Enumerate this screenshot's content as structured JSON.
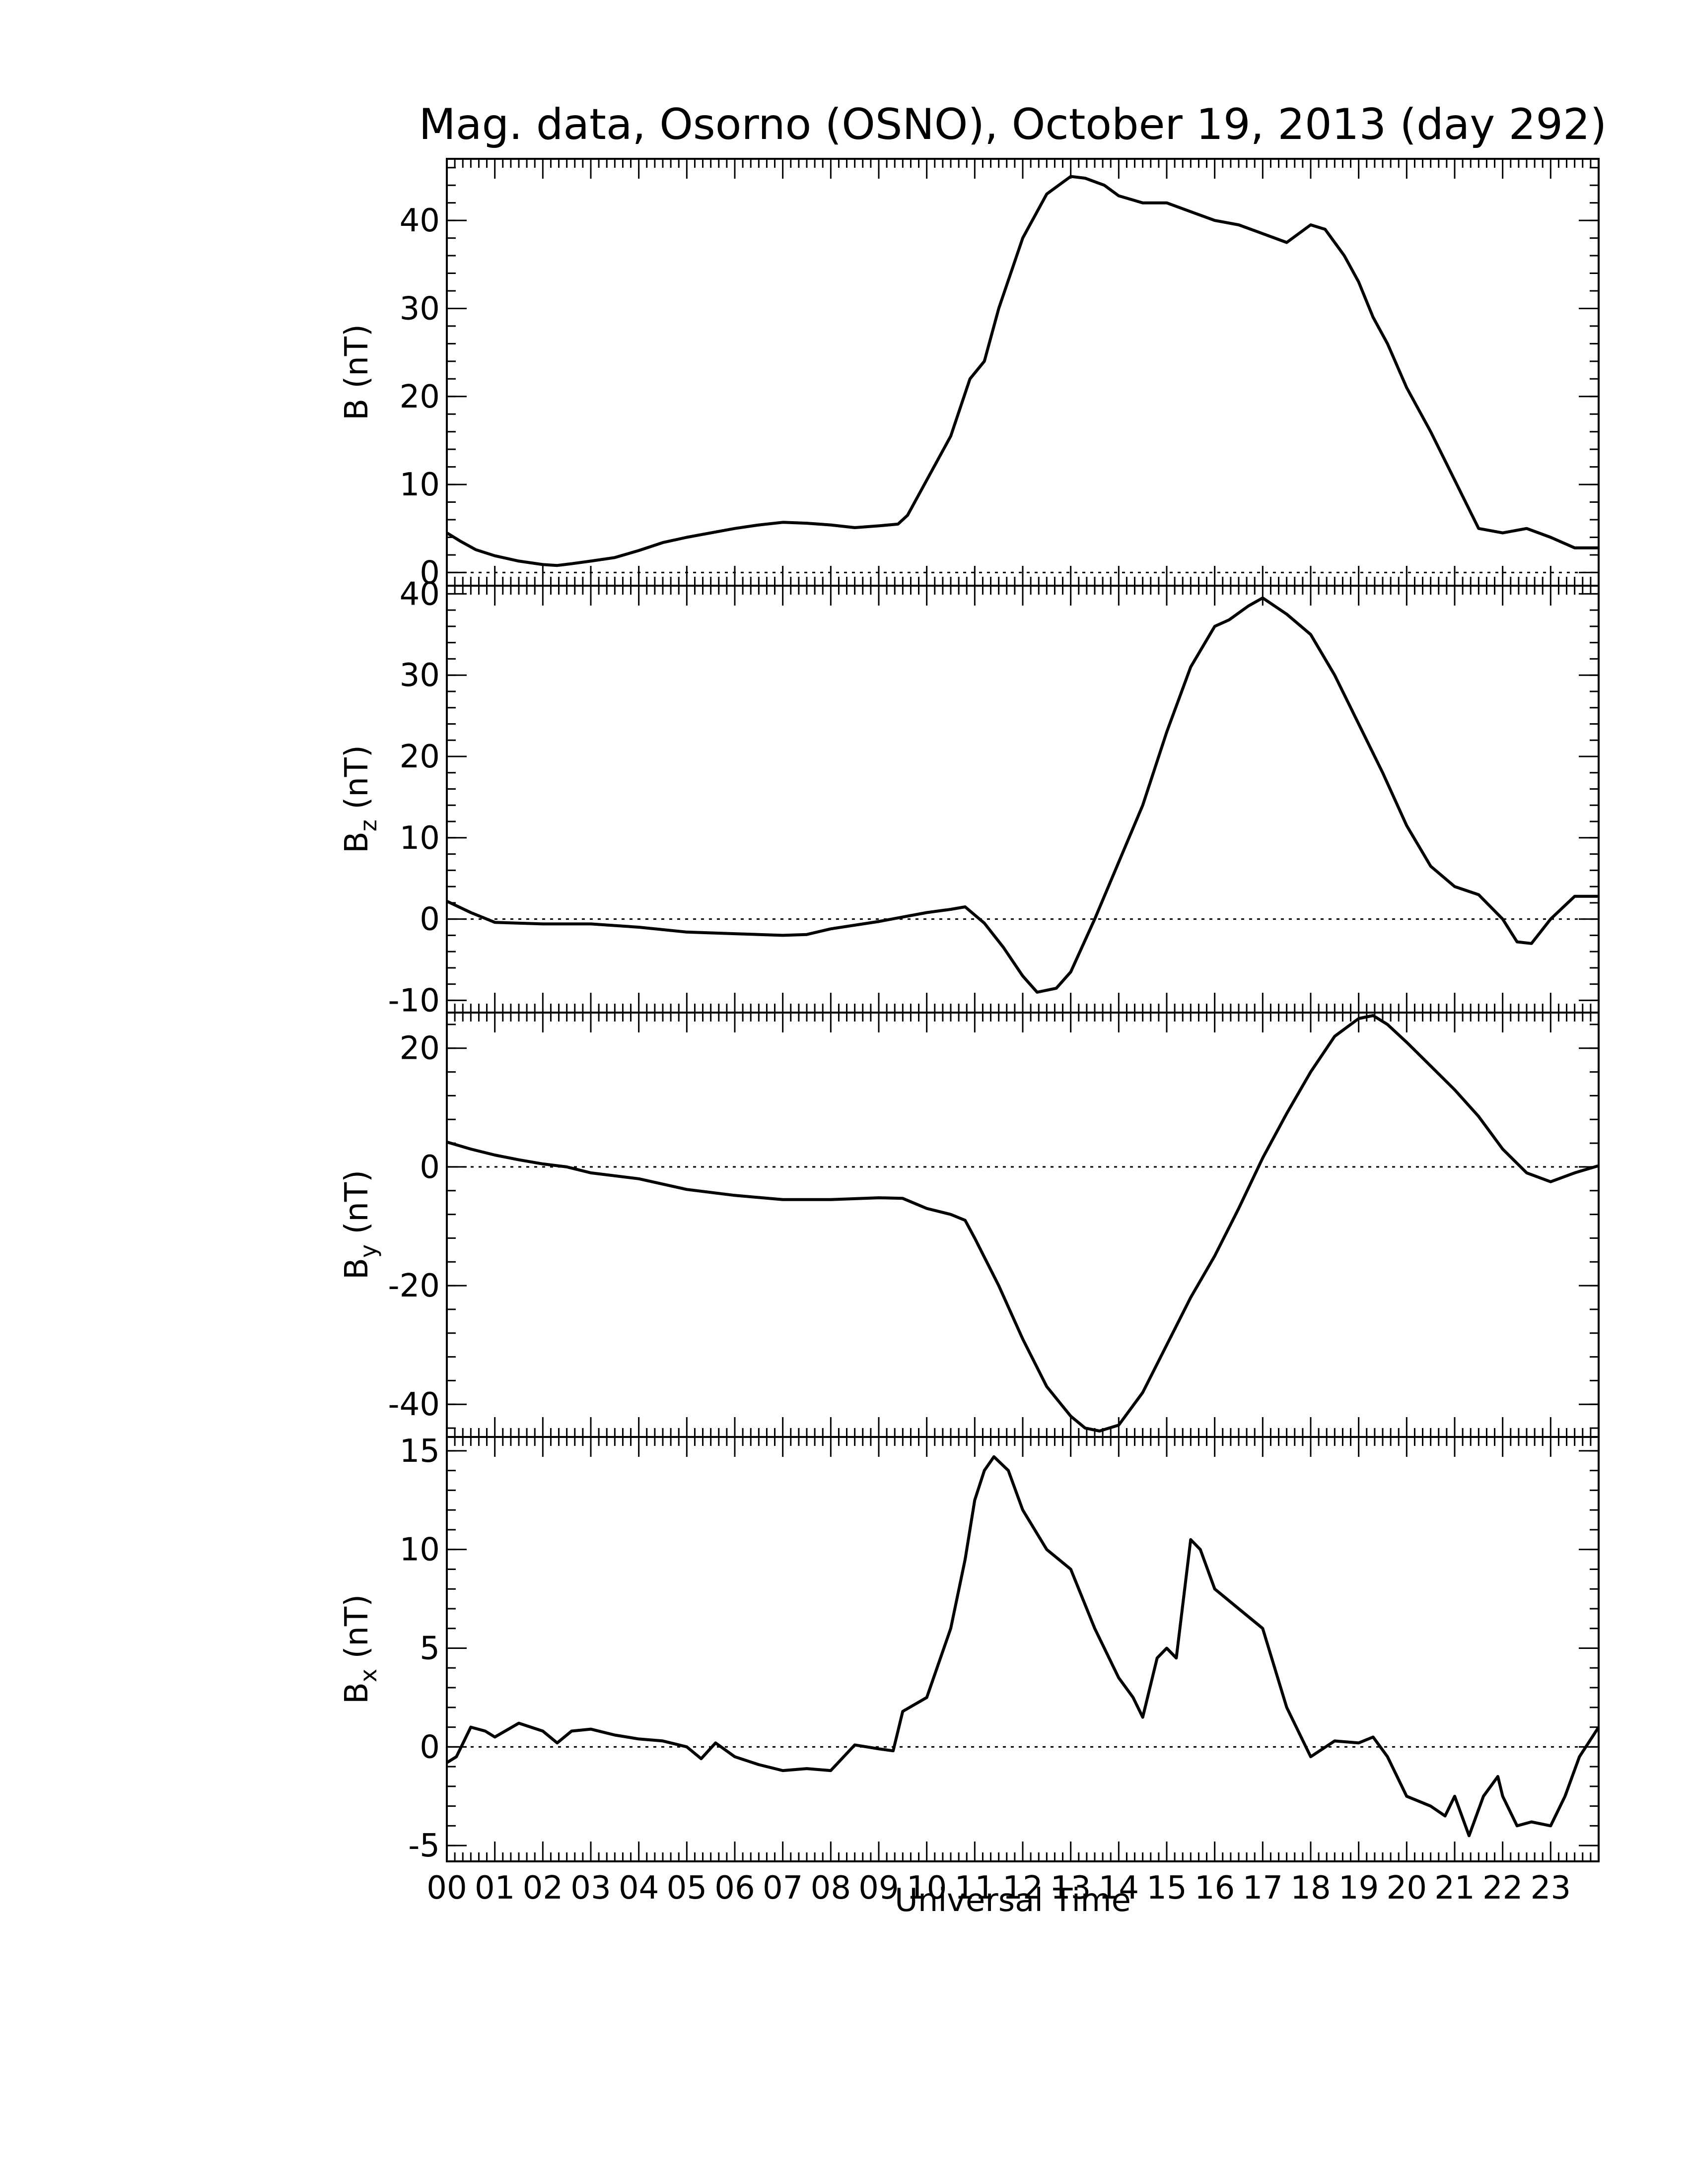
{
  "chart_data": {
    "type": "line",
    "title": "Mag. data, Osorno (OSNO), October 19, 2013 (day 292)",
    "xlabel": "Universal Time",
    "xlim": [
      0,
      24
    ],
    "xtick_labels": [
      "00",
      "01",
      "02",
      "03",
      "04",
      "05",
      "06",
      "07",
      "08",
      "09",
      "10",
      "11",
      "12",
      "13",
      "14",
      "15",
      "16",
      "17",
      "18",
      "19",
      "20",
      "21",
      "22",
      "23"
    ],
    "panels": [
      {
        "ylabel_main": "B",
        "ylabel_sub": "",
        "ylabel_unit": " (nT)",
        "ylim": [
          -1.5,
          47
        ],
        "yticks": [
          0,
          10,
          20,
          30,
          40
        ],
        "zero_line": true,
        "x": [
          0,
          0.3,
          0.6,
          1,
          1.5,
          2,
          2.3,
          2.6,
          3,
          3.5,
          4,
          4.5,
          5,
          5.5,
          6,
          6.5,
          7,
          7.5,
          8,
          8.5,
          9,
          9.4,
          9.6,
          10,
          10.5,
          10.9,
          11.2,
          11.5,
          12,
          12.5,
          13,
          13.3,
          13.7,
          14,
          14.5,
          15,
          15.5,
          16,
          16.5,
          17,
          17.5,
          18,
          18.3,
          18.7,
          19,
          19.3,
          19.6,
          20,
          20.5,
          21,
          21.5,
          22,
          22.5,
          23,
          23.5,
          24
        ],
        "y": [
          4.5,
          3.5,
          2.6,
          1.9,
          1.3,
          0.9,
          0.8,
          1.0,
          1.3,
          1.7,
          2.5,
          3.4,
          4.0,
          4.5,
          5.0,
          5.4,
          5.7,
          5.6,
          5.4,
          5.1,
          5.3,
          5.5,
          6.5,
          10.5,
          15.5,
          22,
          24,
          30,
          38,
          43,
          45,
          44.8,
          44,
          42.8,
          42,
          42,
          41,
          40,
          39.5,
          38.5,
          37.5,
          39.5,
          39,
          36,
          33,
          29,
          26,
          21,
          16,
          10.5,
          5,
          4.5,
          5,
          4,
          2.8,
          2.8
        ]
      },
      {
        "ylabel_main": "B",
        "ylabel_sub": "z",
        "ylabel_unit": " (nT)",
        "ylim": [
          -11.5,
          41
        ],
        "yticks": [
          -10,
          0,
          10,
          20,
          30,
          40
        ],
        "zero_line": true,
        "x": [
          0,
          0.5,
          1,
          2,
          3,
          4,
          5,
          6,
          7,
          7.5,
          8,
          9,
          10,
          10.5,
          10.8,
          11.2,
          11.6,
          12,
          12.3,
          12.7,
          13,
          13.5,
          14,
          14.5,
          15,
          15.5,
          16,
          16.3,
          16.7,
          17,
          17.5,
          18,
          18.5,
          19,
          19.5,
          20,
          20.5,
          21,
          21.5,
          22,
          22.3,
          22.6,
          23,
          23.5,
          24
        ],
        "y": [
          2.2,
          0.8,
          -0.4,
          -0.6,
          -0.6,
          -1.0,
          -1.6,
          -1.8,
          -2.0,
          -1.9,
          -1.2,
          -0.3,
          0.8,
          1.2,
          1.5,
          -0.5,
          -3.5,
          -7.0,
          -9.0,
          -8.5,
          -6.5,
          0,
          7,
          14,
          23,
          31,
          36,
          36.8,
          38.5,
          39.5,
          37.5,
          35,
          30,
          24,
          18,
          11.5,
          6.5,
          4.0,
          3.0,
          0,
          -2.8,
          -3.0,
          0,
          2.8,
          2.8
        ]
      },
      {
        "ylabel_main": "B",
        "ylabel_sub": "y",
        "ylabel_unit": " (nT)",
        "ylim": [
          -45.5,
          26
        ],
        "yticks": [
          -40,
          -20,
          0,
          20
        ],
        "zero_line": true,
        "x": [
          0,
          0.5,
          1,
          1.5,
          2,
          2.5,
          3,
          4,
          5,
          6,
          7,
          8,
          9,
          9.5,
          10,
          10.5,
          10.8,
          11,
          11.5,
          12,
          12.5,
          13,
          13.3,
          13.6,
          14,
          14.5,
          15,
          15.5,
          16,
          16.5,
          17,
          17.5,
          18,
          18.5,
          19,
          19.3,
          19.6,
          20,
          20.5,
          21,
          21.5,
          22,
          22.5,
          23,
          23.5,
          24
        ],
        "y": [
          4.2,
          3.0,
          2.0,
          1.2,
          0.5,
          0.0,
          -1.0,
          -2.0,
          -3.8,
          -4.8,
          -5.5,
          -5.5,
          -5.2,
          -5.3,
          -7,
          -8,
          -9,
          -12,
          -20,
          -29,
          -37,
          -42,
          -44,
          -44.5,
          -43.5,
          -38,
          -30,
          -22,
          -15,
          -7,
          1.5,
          9,
          16,
          22,
          25,
          25.5,
          24,
          21,
          17,
          13,
          8.5,
          3.0,
          -1.0,
          -2.5,
          -1.0,
          0.2
        ]
      },
      {
        "ylabel_main": "B",
        "ylabel_sub": "x",
        "ylabel_unit": " (nT)",
        "ylim": [
          -5.8,
          15.7
        ],
        "yticks": [
          -5,
          0,
          5,
          10,
          15
        ],
        "zero_line": true,
        "x": [
          0,
          0.2,
          0.5,
          0.8,
          1,
          1.5,
          2,
          2.3,
          2.6,
          3,
          3.5,
          4,
          4.5,
          5,
          5.3,
          5.6,
          6,
          6.5,
          7,
          7.5,
          8,
          8.5,
          9,
          9.3,
          9.5,
          10,
          10.5,
          10.8,
          11,
          11.2,
          11.4,
          11.7,
          12,
          12.5,
          13,
          13.5,
          14,
          14.3,
          14.5,
          14.8,
          15,
          15.2,
          15.5,
          15.7,
          16,
          16.5,
          17,
          17.5,
          18,
          18.5,
          19,
          19.3,
          19.6,
          20,
          20.5,
          20.8,
          21,
          21.3,
          21.6,
          21.9,
          22,
          22.3,
          22.6,
          23,
          23.3,
          23.6,
          24
        ],
        "y": [
          -0.8,
          -0.5,
          1.0,
          0.8,
          0.5,
          1.2,
          0.8,
          0.2,
          0.8,
          0.9,
          0.6,
          0.4,
          0.3,
          0.0,
          -0.6,
          0.2,
          -0.5,
          -0.9,
          -1.2,
          -1.1,
          -1.2,
          0.1,
          -0.1,
          -0.2,
          1.8,
          2.5,
          6.0,
          9.5,
          12.5,
          14.0,
          14.7,
          14.0,
          12.0,
          10.0,
          9.0,
          6.0,
          3.5,
          2.5,
          1.5,
          4.5,
          5.0,
          4.5,
          10.5,
          10.0,
          8.0,
          7.0,
          6.0,
          2.0,
          -0.5,
          0.3,
          0.2,
          0.5,
          -0.5,
          -2.5,
          -3.0,
          -3.5,
          -2.5,
          -4.5,
          -2.5,
          -1.5,
          -2.5,
          -4.0,
          -3.8,
          -4.0,
          -2.5,
          -0.5,
          1.0
        ]
      }
    ]
  }
}
